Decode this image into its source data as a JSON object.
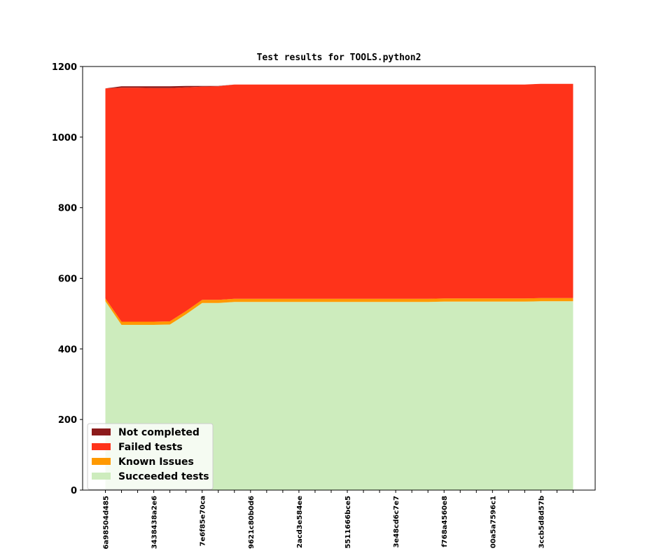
{
  "chart_data": {
    "type": "area",
    "stacked": true,
    "title": "Test results for TOOLS.python2",
    "xlabel": "",
    "ylabel": "",
    "ylim": [
      0,
      1200
    ],
    "yticks": [
      0,
      200,
      400,
      600,
      800,
      1000,
      1200
    ],
    "xtick_labels": [
      "6a98504d485",
      "3438438a2e6",
      "7e6f85e70ca",
      "9621c80b0d6",
      "2acd3e584ee",
      "5511666bce5",
      "3e48cd6c7e7",
      "f768a4560e8",
      "00a5a7596c1",
      "3ccb5d8d57b"
    ],
    "x": [
      0,
      1,
      2,
      3,
      4,
      5,
      6,
      7,
      8,
      9,
      10,
      11,
      12,
      13,
      14,
      15,
      16,
      17,
      18,
      19,
      20,
      21,
      22,
      23,
      24,
      25,
      26,
      27,
      28,
      29
    ],
    "legend_position": "lower-left",
    "grid": false,
    "series": [
      {
        "name": "Succeeded tests",
        "color": "#cdecbd",
        "values": [
          535,
          468,
          468,
          468,
          469,
          498,
          530,
          530,
          533,
          533,
          533,
          533,
          533,
          533,
          533,
          533,
          533,
          533,
          533,
          533,
          533,
          534,
          534,
          534,
          534,
          534,
          534,
          535,
          535,
          535
        ]
      },
      {
        "name": "Known Issues",
        "color": "#ff9900",
        "values": [
          8,
          9,
          9,
          9,
          9,
          9,
          9,
          9,
          9,
          9,
          9,
          9,
          9,
          9,
          9,
          9,
          9,
          9,
          9,
          9,
          9,
          9,
          9,
          9,
          9,
          9,
          9,
          9,
          9,
          9
        ]
      },
      {
        "name": "Failed tests",
        "color": "#ff331a",
        "values": [
          595,
          663,
          663,
          662,
          661,
          634,
          604,
          605,
          607,
          607,
          607,
          607,
          607,
          607,
          607,
          607,
          607,
          607,
          607,
          607,
          607,
          606,
          606,
          606,
          606,
          606,
          606,
          607,
          607,
          607
        ]
      },
      {
        "name": "Not completed",
        "color": "#8b1a1a",
        "values": [
          0,
          4,
          4,
          5,
          5,
          4,
          2,
          1,
          0,
          0,
          0,
          0,
          0,
          0,
          0,
          0,
          0,
          0,
          0,
          0,
          0,
          0,
          0,
          0,
          0,
          0,
          0,
          0,
          0,
          0
        ]
      }
    ]
  }
}
